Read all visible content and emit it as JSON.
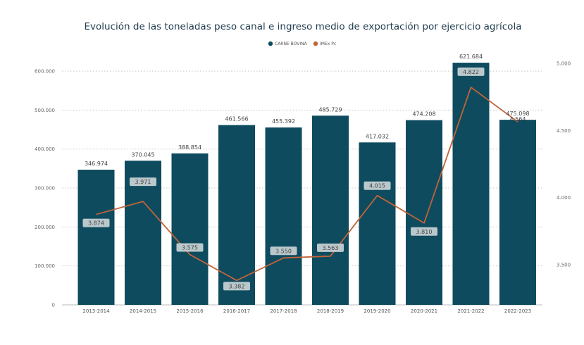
{
  "chart_data": {
    "type": "bar",
    "title": "Evolución de las toneladas peso canal e ingreso medio de exportación por ejercicio agrícola",
    "categories": [
      "2013-2014",
      "2014-2015",
      "2015-2016",
      "2016-2017",
      "2017-2018",
      "2018-2019",
      "2019-2020",
      "2020-2021",
      "2021-2022",
      "2022-2023"
    ],
    "series": [
      {
        "name": "CARNE BOVINA",
        "type": "bar",
        "axis": "left",
        "color": "#0e4b5e",
        "values": [
          346974,
          370045,
          388854,
          461566,
          455392,
          485729,
          417032,
          474208,
          621684,
          475098
        ],
        "labels": [
          "346.974",
          "370.045",
          "388.854",
          "461.566",
          "455.392",
          "485.729",
          "417.032",
          "474.208",
          "621.684",
          "475.098"
        ]
      },
      {
        "name": "IMEx Pc",
        "type": "line",
        "axis": "right",
        "color": "#c0643a",
        "values": [
          3874,
          3971,
          3575,
          3382,
          3550,
          3563,
          4015,
          3810,
          4822,
          4564
        ],
        "labels": [
          "3.874",
          "3.971",
          "3.575",
          "3.382",
          "3.550",
          "3.563",
          "4.015",
          "3.810",
          "4.822",
          "4.564"
        ]
      }
    ],
    "y_left": {
      "ylim": [
        0,
        620000
      ],
      "ticks": [
        0,
        100000,
        200000,
        300000,
        400000,
        500000,
        600000
      ],
      "tick_labels": [
        "0",
        "100.000",
        "200.000",
        "300.000",
        "400.000",
        "500.000",
        "600.000"
      ]
    },
    "y_right": {
      "ylim": [
        3200,
        5000
      ],
      "ticks": [
        3500,
        4000,
        4500,
        5000
      ],
      "tick_labels": [
        "3.500",
        "4.000",
        "4.500",
        "5.000"
      ]
    },
    "legend_position": "top-center",
    "grid": true
  }
}
